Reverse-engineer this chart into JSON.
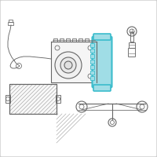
{
  "bg_color": "#ffffff",
  "border_color": "#cccccc",
  "line_color": "#666666",
  "highlight_color": "#3bbccc",
  "highlight_fill": "#a0dde6",
  "figsize": [
    2.0,
    2.0
  ],
  "dpi": 100
}
